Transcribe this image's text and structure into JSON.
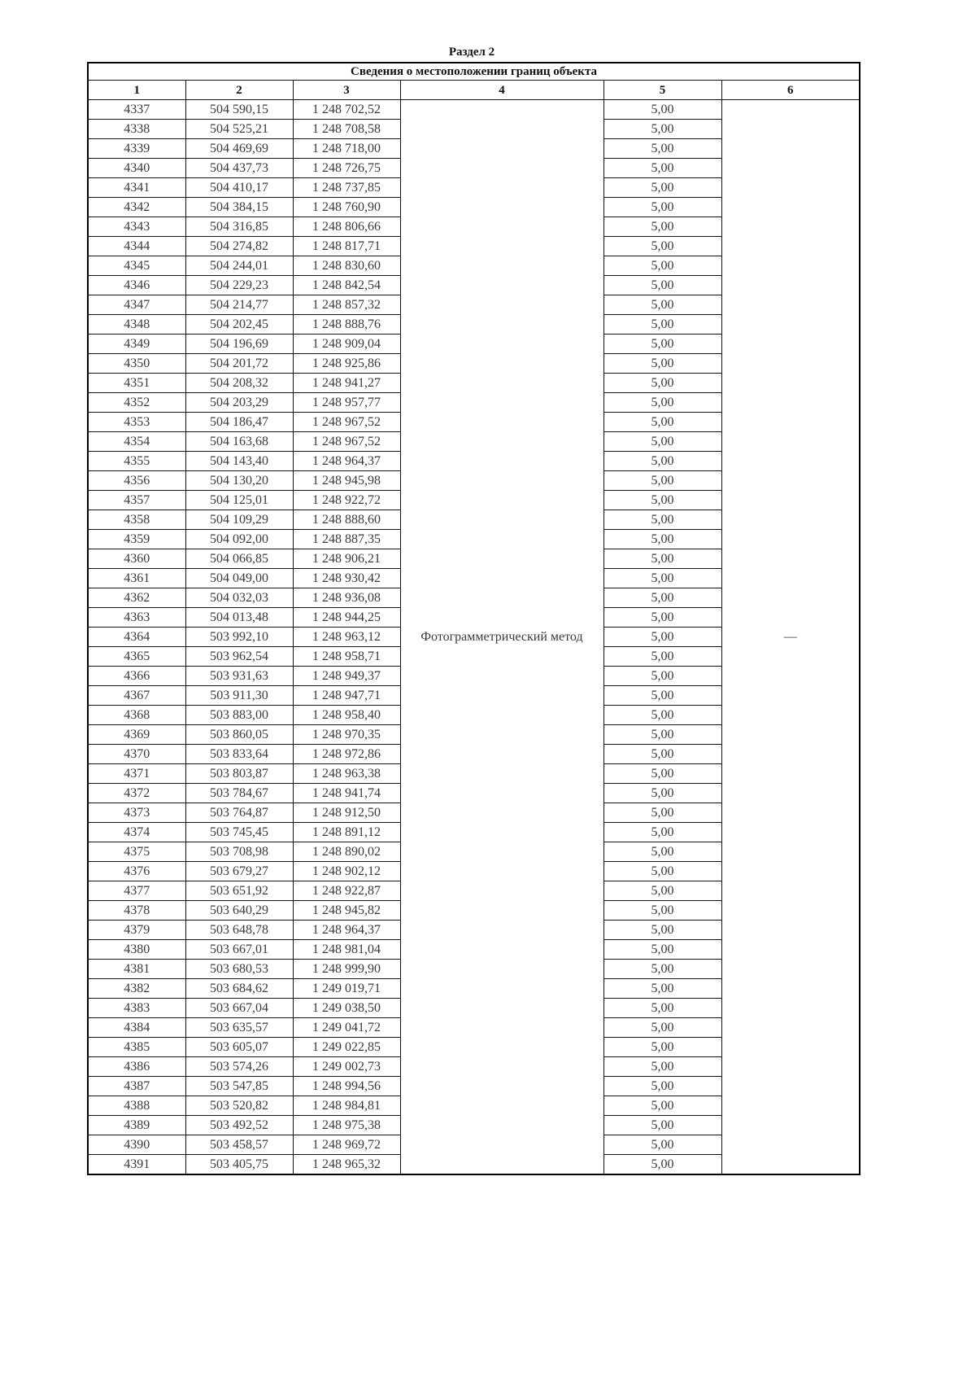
{
  "section_title": "Раздел 2",
  "table": {
    "caption": "Сведения о местоположении границ объекта",
    "column_headers": [
      "1",
      "2",
      "3",
      "4",
      "5",
      "6"
    ],
    "method": "Фотограмметрический метод",
    "col6_value": "—",
    "rows": [
      [
        "4337",
        "504 590,15",
        "1 248 702,52",
        "5,00"
      ],
      [
        "4338",
        "504 525,21",
        "1 248 708,58",
        "5,00"
      ],
      [
        "4339",
        "504 469,69",
        "1 248 718,00",
        "5,00"
      ],
      [
        "4340",
        "504 437,73",
        "1 248 726,75",
        "5,00"
      ],
      [
        "4341",
        "504 410,17",
        "1 248 737,85",
        "5,00"
      ],
      [
        "4342",
        "504 384,15",
        "1 248 760,90",
        "5,00"
      ],
      [
        "4343",
        "504 316,85",
        "1 248 806,66",
        "5,00"
      ],
      [
        "4344",
        "504 274,82",
        "1 248 817,71",
        "5,00"
      ],
      [
        "4345",
        "504 244,01",
        "1 248 830,60",
        "5,00"
      ],
      [
        "4346",
        "504 229,23",
        "1 248 842,54",
        "5,00"
      ],
      [
        "4347",
        "504 214,77",
        "1 248 857,32",
        "5,00"
      ],
      [
        "4348",
        "504 202,45",
        "1 248 888,76",
        "5,00"
      ],
      [
        "4349",
        "504 196,69",
        "1 248 909,04",
        "5,00"
      ],
      [
        "4350",
        "504 201,72",
        "1 248 925,86",
        "5,00"
      ],
      [
        "4351",
        "504 208,32",
        "1 248 941,27",
        "5,00"
      ],
      [
        "4352",
        "504 203,29",
        "1 248 957,77",
        "5,00"
      ],
      [
        "4353",
        "504 186,47",
        "1 248 967,52",
        "5,00"
      ],
      [
        "4354",
        "504 163,68",
        "1 248 967,52",
        "5,00"
      ],
      [
        "4355",
        "504 143,40",
        "1 248 964,37",
        "5,00"
      ],
      [
        "4356",
        "504 130,20",
        "1 248 945,98",
        "5,00"
      ],
      [
        "4357",
        "504 125,01",
        "1 248 922,72",
        "5,00"
      ],
      [
        "4358",
        "504 109,29",
        "1 248 888,60",
        "5,00"
      ],
      [
        "4359",
        "504 092,00",
        "1 248 887,35",
        "5,00"
      ],
      [
        "4360",
        "504 066,85",
        "1 248 906,21",
        "5,00"
      ],
      [
        "4361",
        "504 049,00",
        "1 248 930,42",
        "5,00"
      ],
      [
        "4362",
        "504 032,03",
        "1 248 936,08",
        "5,00"
      ],
      [
        "4363",
        "504 013,48",
        "1 248 944,25",
        "5,00"
      ],
      [
        "4364",
        "503 992,10",
        "1 248 963,12",
        "5,00"
      ],
      [
        "4365",
        "503 962,54",
        "1 248 958,71",
        "5,00"
      ],
      [
        "4366",
        "503 931,63",
        "1 248 949,37",
        "5,00"
      ],
      [
        "4367",
        "503 911,30",
        "1 248 947,71",
        "5,00"
      ],
      [
        "4368",
        "503 883,00",
        "1 248 958,40",
        "5,00"
      ],
      [
        "4369",
        "503 860,05",
        "1 248 970,35",
        "5,00"
      ],
      [
        "4370",
        "503 833,64",
        "1 248 972,86",
        "5,00"
      ],
      [
        "4371",
        "503 803,87",
        "1 248 963,38",
        "5,00"
      ],
      [
        "4372",
        "503 784,67",
        "1 248 941,74",
        "5,00"
      ],
      [
        "4373",
        "503 764,87",
        "1 248 912,50",
        "5,00"
      ],
      [
        "4374",
        "503 745,45",
        "1 248 891,12",
        "5,00"
      ],
      [
        "4375",
        "503 708,98",
        "1 248 890,02",
        "5,00"
      ],
      [
        "4376",
        "503 679,27",
        "1 248 902,12",
        "5,00"
      ],
      [
        "4377",
        "503 651,92",
        "1 248 922,87",
        "5,00"
      ],
      [
        "4378",
        "503 640,29",
        "1 248 945,82",
        "5,00"
      ],
      [
        "4379",
        "503 648,78",
        "1 248 964,37",
        "5,00"
      ],
      [
        "4380",
        "503 667,01",
        "1 248 981,04",
        "5,00"
      ],
      [
        "4381",
        "503 680,53",
        "1 248 999,90",
        "5,00"
      ],
      [
        "4382",
        "503 684,62",
        "1 249 019,71",
        "5,00"
      ],
      [
        "4383",
        "503 667,04",
        "1 249 038,50",
        "5,00"
      ],
      [
        "4384",
        "503 635,57",
        "1 249 041,72",
        "5,00"
      ],
      [
        "4385",
        "503 605,07",
        "1 249 022,85",
        "5,00"
      ],
      [
        "4386",
        "503 574,26",
        "1 249 002,73",
        "5,00"
      ],
      [
        "4387",
        "503 547,85",
        "1 248 994,56",
        "5,00"
      ],
      [
        "4388",
        "503 520,82",
        "1 248 984,81",
        "5,00"
      ],
      [
        "4389",
        "503 492,52",
        "1 248 975,38",
        "5,00"
      ],
      [
        "4390",
        "503 458,57",
        "1 248 969,72",
        "5,00"
      ],
      [
        "4391",
        "503 405,75",
        "1 248 965,32",
        "5,00"
      ]
    ]
  }
}
